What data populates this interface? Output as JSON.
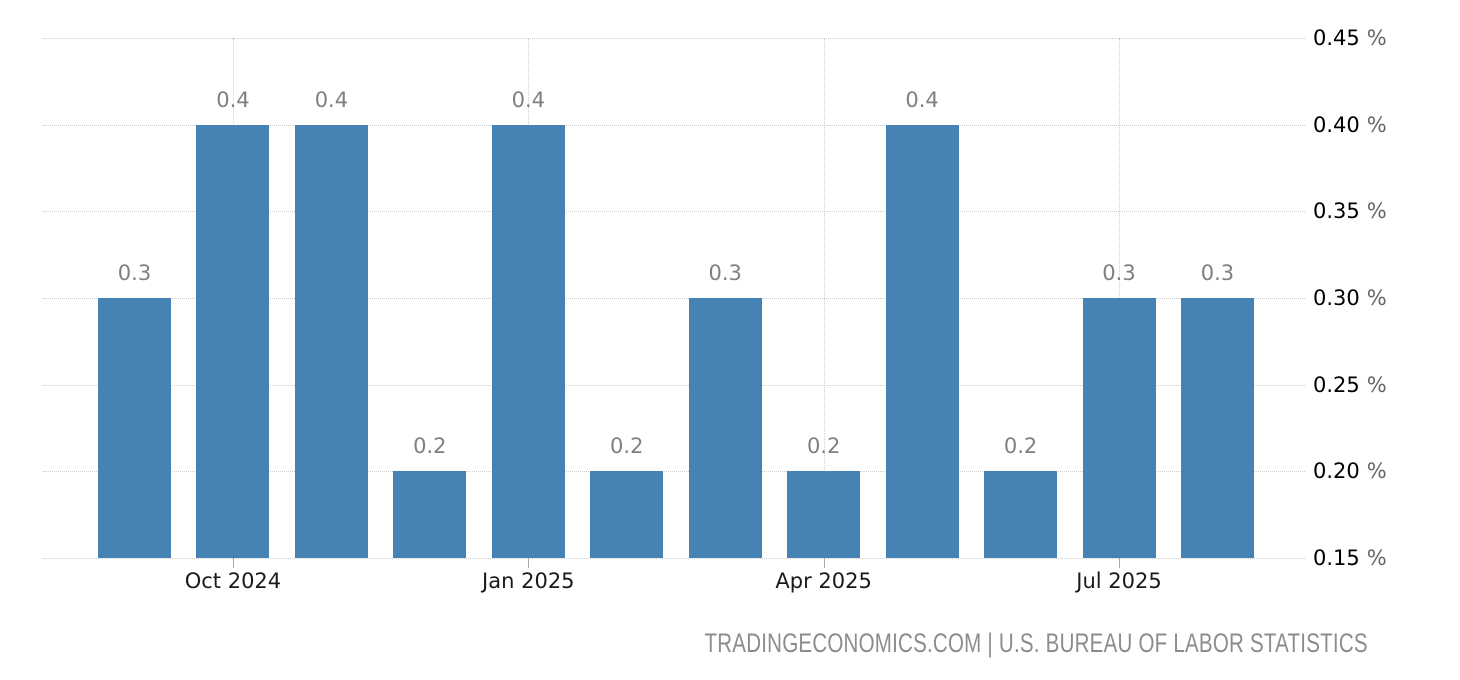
{
  "chart_data": {
    "type": "bar",
    "title": "",
    "xlabel": "",
    "ylabel": "",
    "values": [
      0.3,
      0.4,
      0.4,
      0.2,
      0.4,
      0.2,
      0.3,
      0.2,
      0.4,
      0.2,
      0.3,
      0.3
    ],
    "bar_labels": [
      "0.3",
      "0.4",
      "0.4",
      "0.2",
      "0.4",
      "0.2",
      "0.3",
      "0.2",
      "0.4",
      "0.2",
      "0.3",
      "0.3"
    ],
    "x_tick_labels": [
      "Oct 2024",
      "Jan 2025",
      "Apr 2025",
      "Jul 2025"
    ],
    "x_tick_bar_indices": [
      1,
      4,
      7,
      10
    ],
    "y_tick_values": [
      "0.45",
      "0.40",
      "0.35",
      "0.30",
      "0.25",
      "0.20",
      "0.15"
    ],
    "y_unit": "%",
    "y_ticks": [
      0.45,
      0.4,
      0.35,
      0.3,
      0.25,
      0.2,
      0.15
    ],
    "ylim": [
      0.15,
      0.45
    ],
    "grid": "dotted",
    "legend": "none",
    "colors": {
      "bar": "#4682b4",
      "bar_value_label": "#808080",
      "axis_text": "#000000",
      "axis_unit_text": "#666666",
      "gridline": "#cccccc",
      "attribution_text": "#8c8c8c"
    }
  },
  "attribution": {
    "text": "TRADINGECONOMICS.COM | U.S. BUREAU OF LABOR STATISTICS"
  }
}
